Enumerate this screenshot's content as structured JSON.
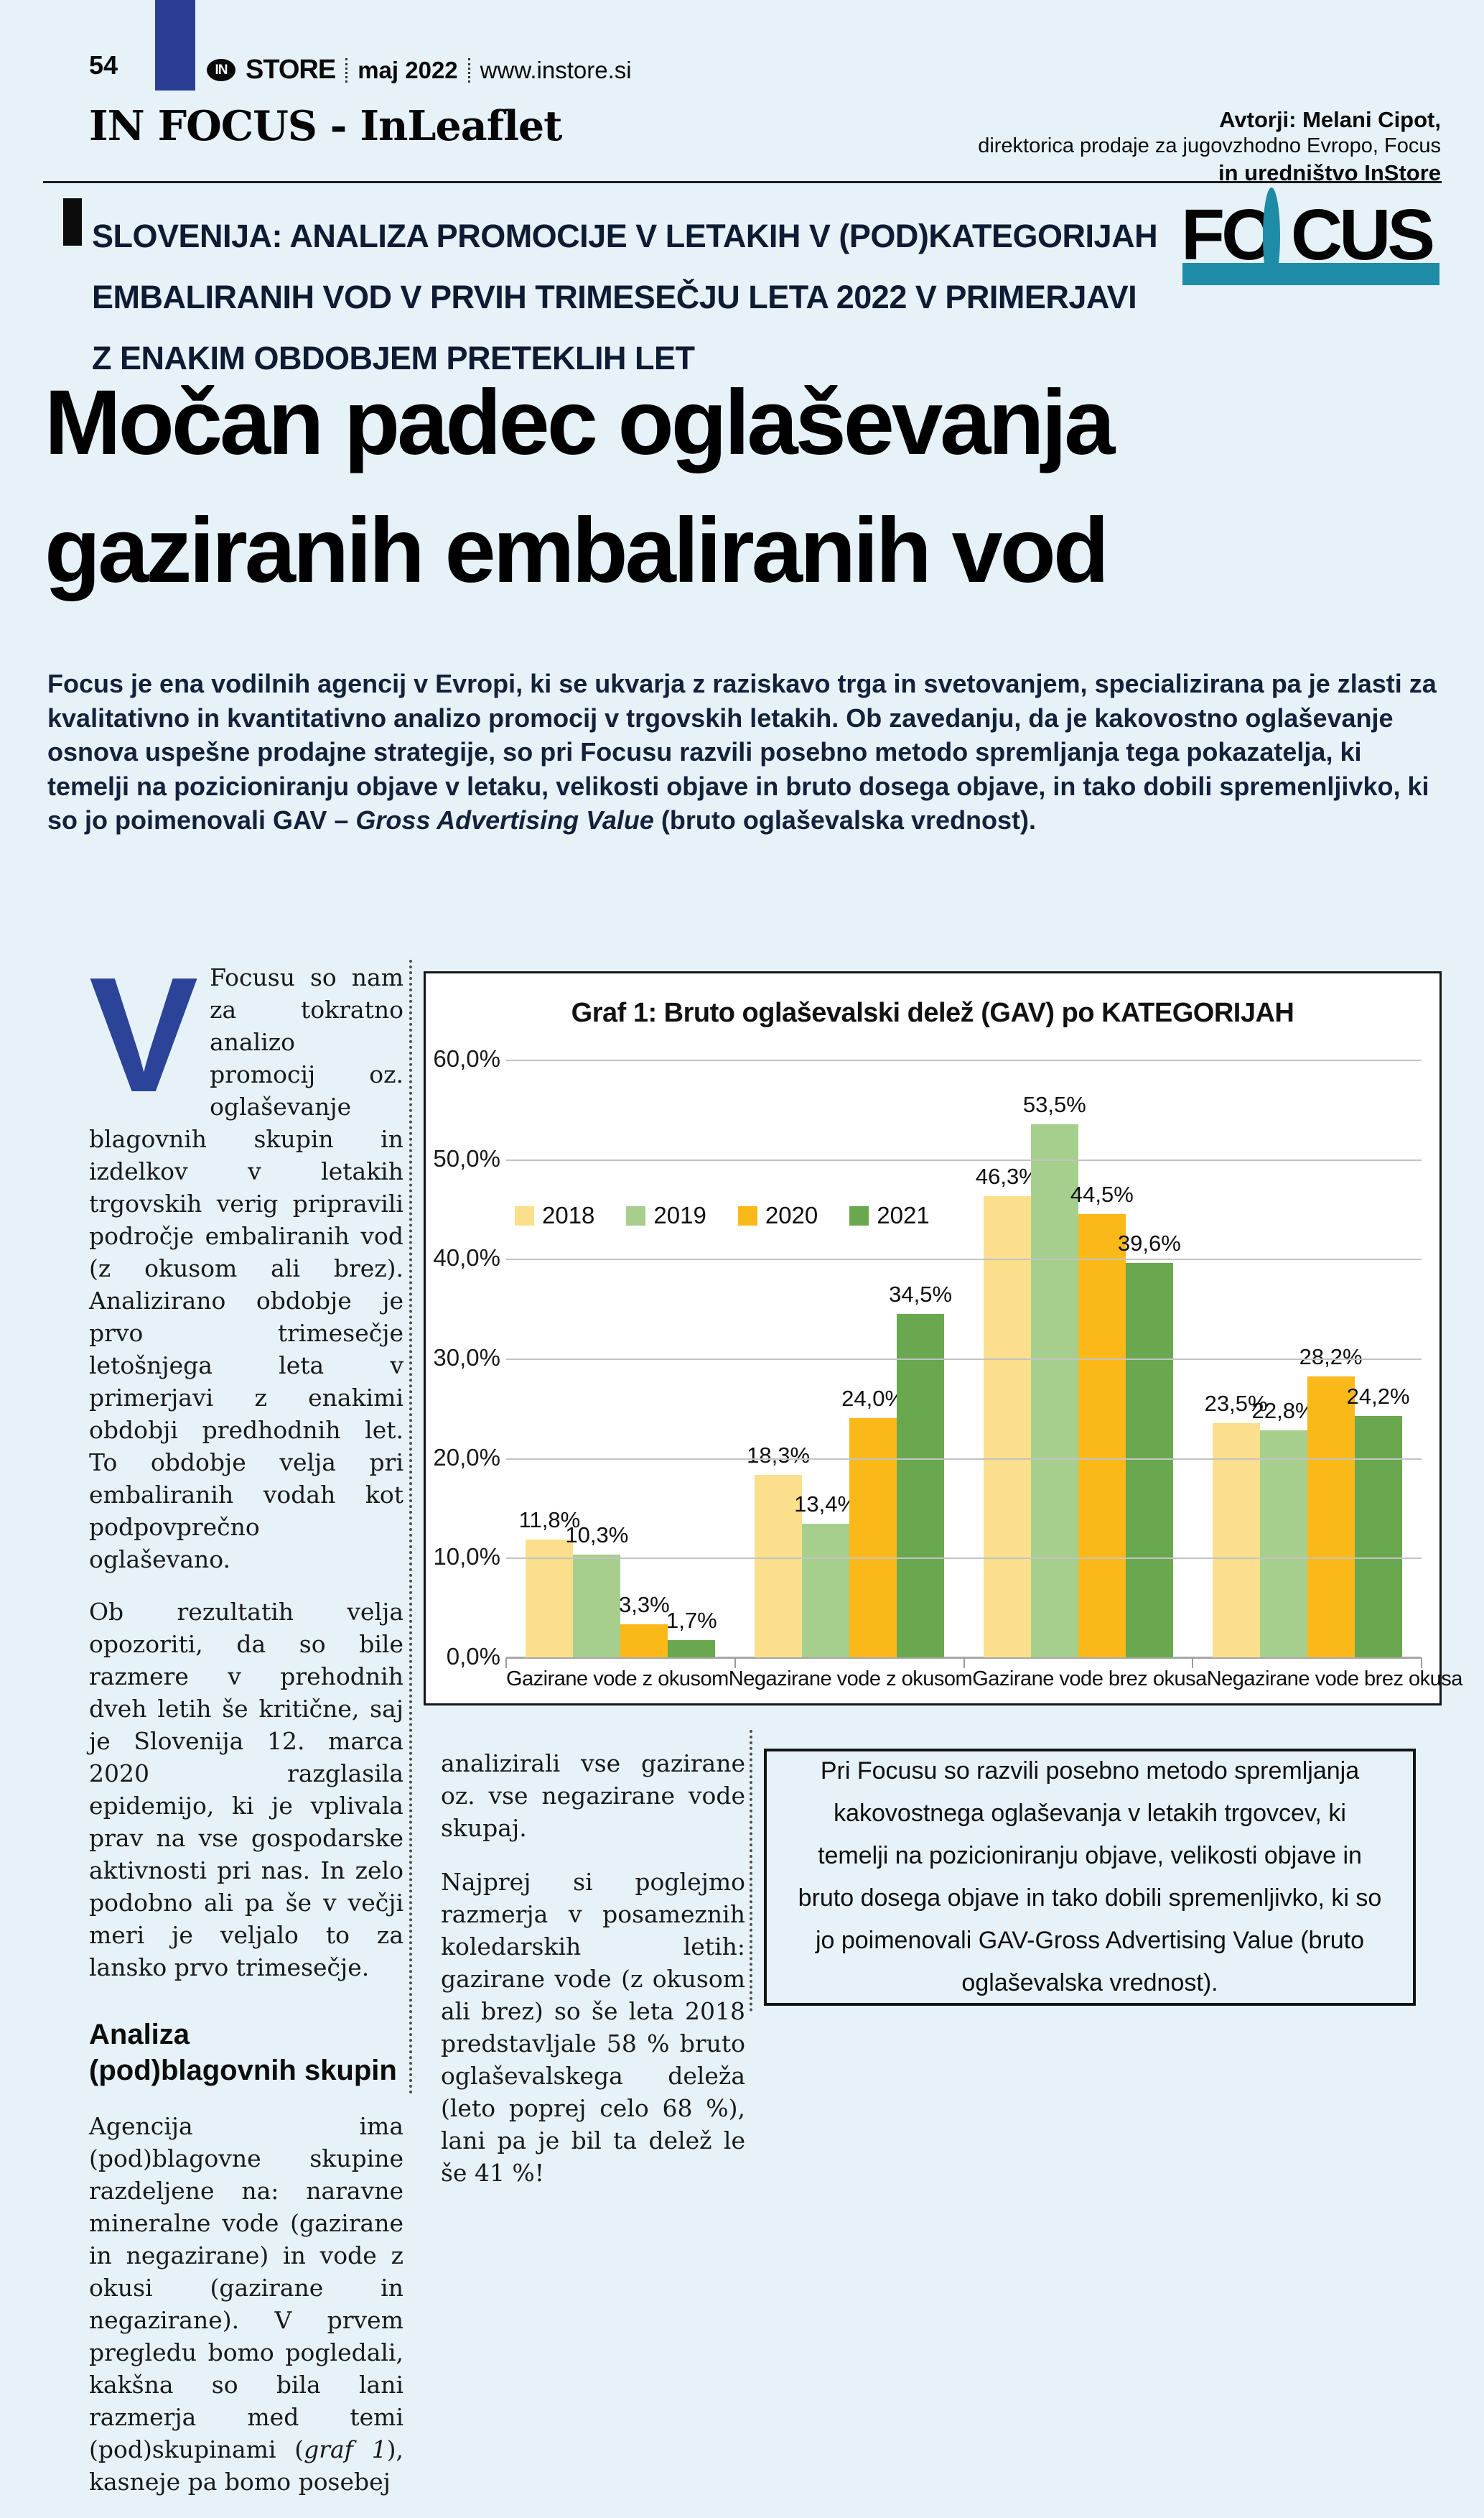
{
  "page": {
    "number": "54"
  },
  "masthead": {
    "in_badge": "IN",
    "store": "STORE",
    "issue": "maj 2022",
    "site": "www.instore.si"
  },
  "section_header": {
    "title": "IN FOCUS - InLeaflet",
    "author_line1": "Avtorji: Melani Cipot,",
    "author_line2": "direktorica prodaje za jugovzhodno Evropo, Focus",
    "author_line3": "in uredništvo InStore"
  },
  "kicker": {
    "line1": "SLOVENIJA: ANALIZA PROMOCIJE V LETAKIH V (POD)KATEGORIJAH",
    "line2": "EMBALIRANIH VOD V PRVIH TRIMESEČJU LETA 2022 V PRIMERJAVI",
    "line3": "Z ENAKIM OBDOBJEM PRETEKLIH LET"
  },
  "focus_logo": {
    "f": "F",
    "o": "O",
    "cus": "CUS",
    "teal": "#1e8ca6"
  },
  "headline": {
    "line1": "Močan padec oglaševanja",
    "line2": "gaziranih embaliranih vod"
  },
  "intro": {
    "before": "Focus je ena vodilnih agencij v Evropi, ki se ukvarja z raziskavo trga in svetovanjem, specializirana pa je zlasti za kvalitativno in kvantitativno analizo promocij v trgovskih letakih. Ob zavedanju, da je kakovostno oglaševanje osnova uspešne prodajne strategije, so pri Focusu razvili posebno metodo spremljanja tega pokazatelja, ki temelji na pozicioniranju objave v letaku, velikosti objave in bruto dosega objave, in tako dobili spremenljivko, ki so jo poimenovali GAV – ",
    "italic": "Gross Advertising Value",
    "after": " (bruto oglaševalska vrednost)."
  },
  "article": {
    "dropcap": "V",
    "p1": "Focusu so nam za tokratno analizo promocij oz. oglaševanje blagovnih skupin in izdelkov v letakih trgovskih verig pripravili področje embaliranih vod (z okusom ali brez). Analizirano obdobje je prvo trimesečje letošnjega leta v primerjavi z enakimi obdobji predhodnih let. To obdobje velja pri embaliranih vodah kot podpovprečno oglaševano.",
    "p2": "Ob rezultatih velja opozoriti, da so bile razmere v prehodnih dveh letih še kritične, saj je Slovenija 12. marca 2020 razglasila epidemijo, ki je vplivala prav na vse gospodarske aktivnosti pri nas. In zelo podobno ali pa še v večji meri je veljalo to za lansko prvo trimesečje.",
    "subhead": "Analiza (pod)blagovnih skupin",
    "p3_before": "Agencija ima (pod)blagovne skupine razdeljene na: naravne mineralne vode (gazirane in negazirane) in vode z okusi (gazirane in negazirane). V prvem pregledu bomo pogledali, kakšna so bila lani razmerja med temi (pod)skupinami (",
    "p3_italic": "graf 1",
    "p3_after": "), kasneje pa bomo posebej",
    "col2_p1": "analizirali vse gazirane oz. vse negazirane vode skupaj.",
    "col2_p2": "Najprej si poglejmo razmerja v posameznih koledarskih letih: gazirane vode (z okusom ali brez) so še leta 2018 predstavljale 58 % bruto oglaševalskega deleža (leto poprej celo 68 %), lani pa je bil ta delež le še 41 %!"
  },
  "callout": {
    "text": "Pri Focusu so razvili posebno metodo spremljanja kakovostnega oglaševanja v letakih trgovcev, ki temelji na pozicioniranju objave, velikosti objave in bruto dosega objave in tako dobili spremenljivko, ki so jo poimenovali GAV-Gross Advertising Value (bruto oglaševalska vrednost)."
  },
  "chart_data": {
    "type": "bar",
    "title": "Graf 1: Bruto oglaševalski delež (GAV) po KATEGORIJAH",
    "categories": [
      "Gazirane vode z okusom",
      "Negazirane vode z okusom",
      "Gazirane vode brez okusa",
      "Negazirane vode brez okusa"
    ],
    "series": [
      {
        "name": "2018",
        "color": "#fcdf8d",
        "values": [
          11.8,
          18.3,
          46.3,
          23.5
        ],
        "labels": [
          "11,8%",
          "18,3%",
          "46,3%",
          "23,5%"
        ]
      },
      {
        "name": "2019",
        "color": "#a6cf8d",
        "values": [
          10.3,
          13.4,
          53.5,
          22.8
        ],
        "labels": [
          "10,3%",
          "13,4%",
          "53,5%",
          "22,8%"
        ]
      },
      {
        "name": "2020",
        "color": "#fbb819",
        "values": [
          3.3,
          24.0,
          44.5,
          28.2
        ],
        "labels": [
          "3,3%",
          "24,0%",
          "44,5%",
          "28,2%"
        ]
      },
      {
        "name": "2021",
        "color": "#69a84f",
        "values": [
          1.7,
          34.5,
          39.6,
          24.2
        ],
        "labels": [
          "1,7%",
          "34,5%",
          "39,6%",
          "24,2%"
        ]
      }
    ],
    "y_ticks": [
      {
        "label": "60,0%",
        "value": 60
      },
      {
        "label": "50,0%",
        "value": 50
      },
      {
        "label": "40,0%",
        "value": 40
      },
      {
        "label": "30,0%",
        "value": 30
      },
      {
        "label": "20,0%",
        "value": 20
      },
      {
        "label": "10,0%",
        "value": 10
      },
      {
        "label": "0,0%",
        "value": 0
      }
    ],
    "ylim": [
      0,
      60
    ],
    "xlabel": "",
    "ylabel": "",
    "grid": true,
    "legend_position": "inside-upper-left"
  }
}
